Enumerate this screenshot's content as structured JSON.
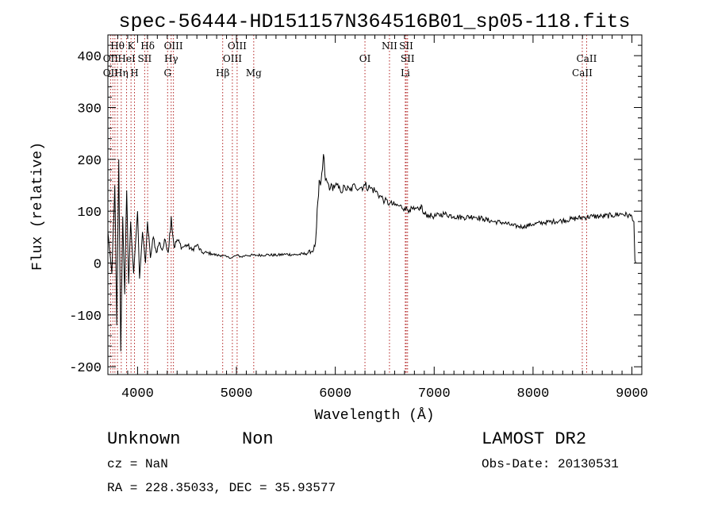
{
  "chart_data": {
    "type": "line",
    "title": "spec-56444-HD151157N364516B01_sp05-118.fits",
    "xlabel": "Wavelength (Å)",
    "ylabel": "Flux (relative)",
    "xlim": [
      3700,
      9100
    ],
    "ylim": [
      -215,
      440
    ],
    "x_ticks": [
      4000,
      5000,
      6000,
      7000,
      8000,
      9000
    ],
    "y_ticks": [
      -200,
      -100,
      0,
      100,
      200,
      300,
      400
    ],
    "grid": false,
    "series": [
      {
        "color": "#000000",
        "points": [
          [
            3700,
            60
          ],
          [
            3740,
            -20
          ],
          [
            3770,
            150
          ],
          [
            3790,
            -120
          ],
          [
            3810,
            200
          ],
          [
            3830,
            -170
          ],
          [
            3850,
            90
          ],
          [
            3870,
            -60
          ],
          [
            3890,
            140
          ],
          [
            3910,
            -40
          ],
          [
            3930,
            80
          ],
          [
            3960,
            -20
          ],
          [
            4000,
            100
          ],
          [
            4020,
            -30
          ],
          [
            4050,
            60
          ],
          [
            4080,
            0
          ],
          [
            4100,
            80
          ],
          [
            4130,
            10
          ],
          [
            4160,
            50
          ],
          [
            4190,
            20
          ],
          [
            4220,
            40
          ],
          [
            4250,
            25
          ],
          [
            4280,
            45
          ],
          [
            4310,
            20
          ],
          [
            4340,
            90
          ],
          [
            4370,
            30
          ],
          [
            4400,
            45
          ],
          [
            4450,
            30
          ],
          [
            4500,
            35
          ],
          [
            4550,
            25
          ],
          [
            4600,
            35
          ],
          [
            4650,
            20
          ],
          [
            4700,
            20
          ],
          [
            4750,
            18
          ],
          [
            4800,
            15
          ],
          [
            4850,
            15
          ],
          [
            4900,
            12
          ],
          [
            4950,
            10
          ],
          [
            5000,
            15
          ],
          [
            5050,
            12
          ],
          [
            5100,
            15
          ],
          [
            5200,
            15
          ],
          [
            5300,
            16
          ],
          [
            5400,
            15
          ],
          [
            5500,
            17
          ],
          [
            5600,
            16
          ],
          [
            5700,
            18
          ],
          [
            5780,
            25
          ],
          [
            5800,
            40
          ],
          [
            5810,
            70
          ],
          [
            5830,
            130
          ],
          [
            5850,
            150
          ],
          [
            5870,
            180
          ],
          [
            5880,
            210
          ],
          [
            5900,
            160
          ],
          [
            5950,
            145
          ],
          [
            6000,
            150
          ],
          [
            6050,
            140
          ],
          [
            6100,
            145
          ],
          [
            6150,
            140
          ],
          [
            6200,
            150
          ],
          [
            6250,
            145
          ],
          [
            6300,
            150
          ],
          [
            6350,
            145
          ],
          [
            6400,
            140
          ],
          [
            6450,
            130
          ],
          [
            6500,
            120
          ],
          [
            6550,
            115
          ],
          [
            6600,
            112
          ],
          [
            6650,
            110
          ],
          [
            6700,
            106
          ],
          [
            6750,
            103
          ],
          [
            6800,
            103
          ],
          [
            6850,
            102
          ],
          [
            6870,
            112
          ],
          [
            6890,
            95
          ],
          [
            6950,
            92
          ],
          [
            7000,
            90
          ],
          [
            7100,
            95
          ],
          [
            7200,
            90
          ],
          [
            7300,
            88
          ],
          [
            7400,
            90
          ],
          [
            7500,
            85
          ],
          [
            7600,
            80
          ],
          [
            7700,
            78
          ],
          [
            7800,
            72
          ],
          [
            7900,
            70
          ],
          [
            8000,
            75
          ],
          [
            8100,
            78
          ],
          [
            8200,
            80
          ],
          [
            8300,
            82
          ],
          [
            8400,
            85
          ],
          [
            8500,
            88
          ],
          [
            8600,
            90
          ],
          [
            8700,
            90
          ],
          [
            8800,
            92
          ],
          [
            8900,
            95
          ],
          [
            9000,
            90
          ],
          [
            9020,
            80
          ],
          [
            9030,
            5
          ],
          [
            9040,
            0
          ]
        ]
      }
    ],
    "annotations": [
      {
        "label": "Hθ",
        "x": 3797,
        "row": 1
      },
      {
        "label": "OII",
        "x": 3727,
        "row": 2
      },
      {
        "label": "OII",
        "x": 3727,
        "row": 3
      },
      {
        "label": "Hη",
        "x": 3835,
        "row": 3
      },
      {
        "label": "HeI",
        "x": 3889,
        "row": 2
      },
      {
        "label": "K",
        "x": 3934,
        "row": 1
      },
      {
        "label": "H",
        "x": 3969,
        "row": 3
      },
      {
        "label": "Hδ",
        "x": 4102,
        "row": 1
      },
      {
        "label": "SII",
        "x": 4072,
        "row": 2
      },
      {
        "label": "OIII",
        "x": 4363,
        "row": 1
      },
      {
        "label": "Hγ",
        "x": 4340,
        "row": 2
      },
      {
        "label": "G",
        "x": 4304,
        "row": 3
      },
      {
        "label": "OIII",
        "x": 5007,
        "row": 1
      },
      {
        "label": "OIII",
        "x": 4959,
        "row": 2
      },
      {
        "label": "Hβ",
        "x": 4861,
        "row": 3
      },
      {
        "label": "Mg",
        "x": 5175,
        "row": 3
      },
      {
        "label": "OI",
        "x": 6300,
        "row": 2
      },
      {
        "label": "NII",
        "x": 6548,
        "row": 1
      },
      {
        "label": "SII",
        "x": 6717,
        "row": 1
      },
      {
        "label": "SII",
        "x": 6731,
        "row": 2
      },
      {
        "label": "Li",
        "x": 6708,
        "row": 3
      },
      {
        "label": "CaII",
        "x": 8542,
        "row": 2
      },
      {
        "label": "CaII",
        "x": 8498,
        "row": 3
      }
    ],
    "line_markers": [
      3727,
      3750,
      3771,
      3797,
      3835,
      3889,
      3934,
      3969,
      4072,
      4102,
      4304,
      4340,
      4363,
      4861,
      4959,
      5007,
      5175,
      6300,
      6548,
      6708,
      6717,
      6731,
      8498,
      8542
    ]
  },
  "info": {
    "class": "Unknown",
    "subclass": "Non",
    "cz": "cz = NaN",
    "coords": "RA = 228.35033, DEC =  35.93577",
    "survey": "LAMOST DR2",
    "obsdate": "Obs-Date: 20130531"
  }
}
